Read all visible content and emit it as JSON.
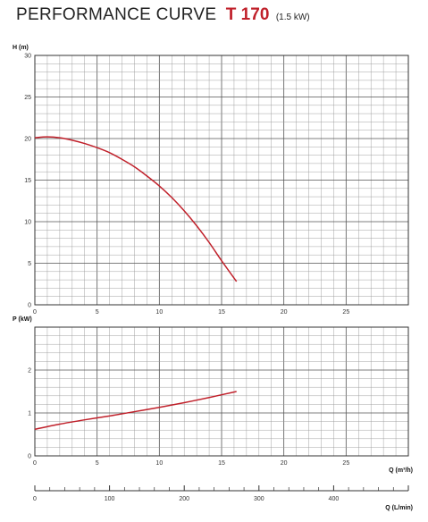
{
  "title": {
    "main": "PERFORMANCE CURVE",
    "model": "T 170",
    "power": "(1.5 kW)"
  },
  "colors": {
    "curve": "#c0202a",
    "grid_major": "#555555",
    "grid_minor": "#999999"
  },
  "chart_data": [
    {
      "type": "line",
      "ylabel": "H (m)",
      "xlim": [
        0,
        30
      ],
      "ylim": [
        0,
        30
      ],
      "x_ticks": [
        0,
        5,
        10,
        15,
        20,
        25
      ],
      "y_ticks": [
        0,
        5,
        10,
        15,
        20,
        25,
        30
      ],
      "grid": true,
      "series": [
        {
          "x": [
            0,
            1,
            2,
            3,
            4,
            5,
            6,
            7,
            8,
            9,
            10,
            11,
            12,
            13,
            14,
            15,
            16.2
          ],
          "y": [
            20.1,
            20.2,
            20.1,
            19.8,
            19.4,
            18.9,
            18.3,
            17.5,
            16.6,
            15.5,
            14.3,
            12.9,
            11.3,
            9.5,
            7.5,
            5.3,
            2.8
          ]
        }
      ]
    },
    {
      "type": "line",
      "ylabel": "P (kW)",
      "xlabel": "Q (m³/h)",
      "xlim": [
        0,
        30
      ],
      "ylim": [
        0,
        3
      ],
      "x_ticks": [
        0,
        5,
        10,
        15,
        20,
        25
      ],
      "y_ticks": [
        0,
        1,
        2
      ],
      "grid": true,
      "series": [
        {
          "x": [
            0,
            2,
            4,
            6,
            8,
            10,
            12,
            14,
            16.2
          ],
          "y": [
            0.62,
            0.74,
            0.84,
            0.93,
            1.03,
            1.13,
            1.24,
            1.36,
            1.5
          ]
        }
      ]
    },
    {
      "type": "axis",
      "xlabel": "Q (L/min)",
      "xlim": [
        0,
        500
      ],
      "x_ticks": [
        0,
        100,
        200,
        300,
        400
      ]
    }
  ]
}
